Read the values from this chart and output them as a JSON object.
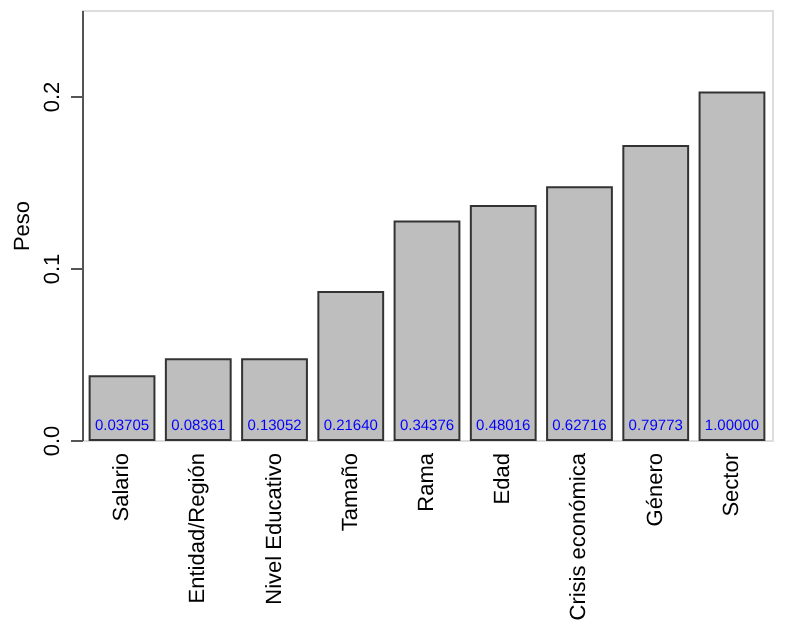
{
  "chart_data": {
    "type": "bar",
    "ylabel": "Peso",
    "categories": [
      "Salario",
      "Entidad/Región",
      "Nivel Educativo",
      "Tamaño",
      "Rama",
      "Edad",
      "Crisis económica",
      "Género",
      "Sector"
    ],
    "values": [
      0.037,
      0.047,
      0.047,
      0.086,
      0.127,
      0.136,
      0.147,
      0.171,
      0.202
    ],
    "annotations": [
      {
        "text": "0.03705",
        "x": "Salario",
        "y": 0
      },
      {
        "text": "0.08361",
        "x": "Entidad/Región",
        "y": 0
      },
      {
        "text": "0.13052",
        "x": "Nivel Educativo",
        "y": 0
      },
      {
        "text": "0.21640",
        "x": "Tamaño",
        "y": 0
      },
      {
        "text": "0.34376",
        "x": "Rama",
        "y": 0
      },
      {
        "text": "0.48016",
        "x": "Edad",
        "y": 0
      },
      {
        "text": "0.62716",
        "x": "Crisis económica",
        "y": 0
      },
      {
        "text": "0.79773",
        "x": "Género",
        "y": 0
      },
      {
        "text": "1.00000",
        "x": "Sector",
        "y": 0
      }
    ],
    "color": "#bebebe",
    "ylim": [
      0,
      0.25
    ],
    "yticks": [
      {
        "value": 0,
        "label": "0.0"
      },
      0.1,
      0.2
    ],
    "grid": false
  }
}
